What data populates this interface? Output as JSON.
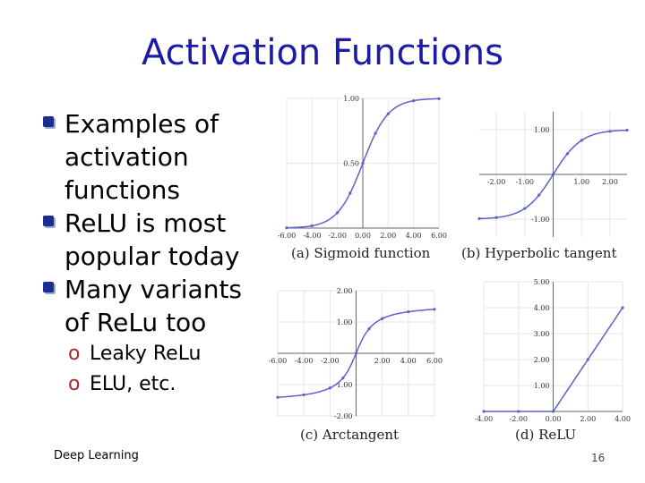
{
  "slide": {
    "title": "Activation Functions",
    "bullets": [
      {
        "lines": [
          "Examples of",
          "activation",
          "functions"
        ]
      },
      {
        "lines": [
          "ReLU is most",
          "popular today"
        ]
      },
      {
        "lines": [
          "Many variants",
          "of ReLu too"
        ]
      }
    ],
    "subbullets": [
      "Leaky ReLu",
      "ELU, etc."
    ],
    "footer": "Deep Learning",
    "page_number": "16"
  },
  "chart_data": [
    {
      "type": "line",
      "function": "sigmoid",
      "caption": "(a) Sigmoid function",
      "xlim": [
        -6,
        6
      ],
      "ylim": [
        0,
        1
      ],
      "x_ticks": [
        "-6.00",
        "-4.00",
        "-2.00",
        "0.00",
        "2.00",
        "4.00",
        "6.00"
      ],
      "y_ticks": [
        "1.00",
        "0.50"
      ],
      "x": [
        -6,
        -4,
        -2,
        -1,
        0,
        1,
        2,
        4,
        6
      ],
      "y": [
        0.002,
        0.018,
        0.119,
        0.269,
        0.5,
        0.731,
        0.881,
        0.982,
        0.998
      ],
      "grid": true
    },
    {
      "type": "line",
      "function": "tanh",
      "caption": "(b) Hyperbolic tangent",
      "xlim": [
        -2.6,
        2.6
      ],
      "ylim": [
        -1.4,
        1.4
      ],
      "x_ticks": [
        "-2.00",
        "-1.00",
        "1.00",
        "2.00"
      ],
      "y_ticks": [
        "1.00",
        "-1.00"
      ],
      "x": [
        -2.6,
        -2,
        -1,
        -0.5,
        0,
        0.5,
        1,
        2,
        2.6
      ],
      "y": [
        -0.989,
        -0.964,
        -0.762,
        -0.462,
        0,
        0.462,
        0.762,
        0.964,
        0.989
      ],
      "grid": true
    },
    {
      "type": "line",
      "function": "arctan",
      "caption": "(c) Arctangent",
      "xlim": [
        -6,
        6
      ],
      "ylim": [
        -2,
        2
      ],
      "x_ticks": [
        "-6.00",
        "-4.00",
        "-2.00",
        "2.00",
        "4.00",
        "6.00"
      ],
      "y_ticks": [
        "2.00",
        "1.00",
        "-1.00",
        "-2.00"
      ],
      "x": [
        -6,
        -4,
        -2,
        -1,
        0,
        1,
        2,
        4,
        6
      ],
      "y": [
        -1.406,
        -1.326,
        -1.107,
        -0.785,
        0,
        0.785,
        1.107,
        1.326,
        1.406
      ],
      "grid": true
    },
    {
      "type": "line",
      "function": "relu",
      "caption": "(d) ReLU",
      "xlim": [
        -4,
        4
      ],
      "ylim": [
        0,
        5
      ],
      "x_ticks": [
        "-4.00",
        "-2.00",
        "0.00",
        "2.00",
        "4.00"
      ],
      "y_ticks": [
        "5.00",
        "4.00",
        "3.00",
        "2.00",
        "1.00"
      ],
      "x": [
        -4,
        -2,
        0,
        2,
        4
      ],
      "y": [
        0,
        0,
        0,
        2,
        4
      ],
      "grid": true
    }
  ]
}
